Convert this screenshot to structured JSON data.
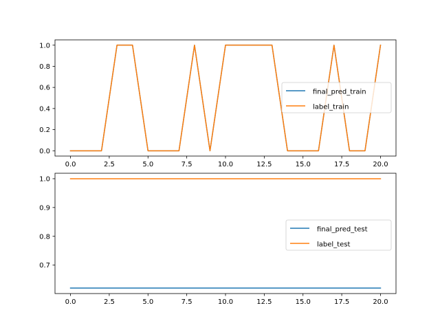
{
  "chart_data": [
    {
      "type": "line",
      "x": [
        0,
        1,
        2,
        3,
        4,
        5,
        6,
        7,
        8,
        9,
        10,
        11,
        12,
        13,
        14,
        15,
        16,
        17,
        18,
        19,
        20
      ],
      "series": [
        {
          "name": "final_pred_train",
          "color": "#1f77b4",
          "values": [
            0,
            0,
            0,
            1,
            1,
            0,
            0,
            0,
            1,
            0,
            1,
            1,
            1,
            1,
            0,
            0,
            0,
            1,
            0,
            0,
            1
          ]
        },
        {
          "name": "label_train",
          "color": "#ff7f0e",
          "values": [
            0,
            0,
            0,
            1,
            1,
            0,
            0,
            0,
            1,
            0,
            1,
            1,
            1,
            1,
            0,
            0,
            0,
            1,
            0,
            0,
            1
          ]
        }
      ],
      "xlim": [
        -1,
        21
      ],
      "ylim": [
        -0.05,
        1.05
      ],
      "xticks": [
        0.0,
        2.5,
        5.0,
        7.5,
        10.0,
        12.5,
        15.0,
        17.5,
        20.0
      ],
      "xtick_labels": [
        "0.0",
        "2.5",
        "5.0",
        "7.5",
        "10.0",
        "12.5",
        "15.0",
        "17.5",
        "20.0"
      ],
      "yticks": [
        0.0,
        0.2,
        0.4,
        0.6,
        0.8,
        1.0
      ],
      "ytick_labels": [
        "0.0",
        "0.2",
        "0.4",
        "0.6",
        "0.8",
        "1.0"
      ],
      "legend": "center-right",
      "grid": false
    },
    {
      "type": "line",
      "x": [
        0,
        1,
        2,
        3,
        4,
        5,
        6,
        7,
        8,
        9,
        10,
        11,
        12,
        13,
        14,
        15,
        16,
        17,
        18,
        19,
        20
      ],
      "series": [
        {
          "name": "final_pred_test",
          "color": "#1f77b4",
          "values": [
            0.62,
            0.62,
            0.62,
            0.62,
            0.62,
            0.62,
            0.62,
            0.62,
            0.62,
            0.62,
            0.62,
            0.62,
            0.62,
            0.62,
            0.62,
            0.62,
            0.62,
            0.62,
            0.62,
            0.62,
            0.62
          ]
        },
        {
          "name": "label_test",
          "color": "#ff7f0e",
          "values": [
            1,
            1,
            1,
            1,
            1,
            1,
            1,
            1,
            1,
            1,
            1,
            1,
            1,
            1,
            1,
            1,
            1,
            1,
            1,
            1,
            1
          ]
        }
      ],
      "xlim": [
        -1,
        21
      ],
      "ylim": [
        0.601,
        1.019
      ],
      "xticks": [
        0.0,
        2.5,
        5.0,
        7.5,
        10.0,
        12.5,
        15.0,
        17.5,
        20.0
      ],
      "xtick_labels": [
        "0.0",
        "2.5",
        "5.0",
        "7.5",
        "10.0",
        "12.5",
        "15.0",
        "17.5",
        "20.0"
      ],
      "yticks": [
        0.7,
        0.8,
        0.9,
        1.0
      ],
      "ytick_labels": [
        "0.7",
        "0.8",
        "0.9",
        "1.0"
      ],
      "legend": "center-right",
      "grid": false
    }
  ]
}
